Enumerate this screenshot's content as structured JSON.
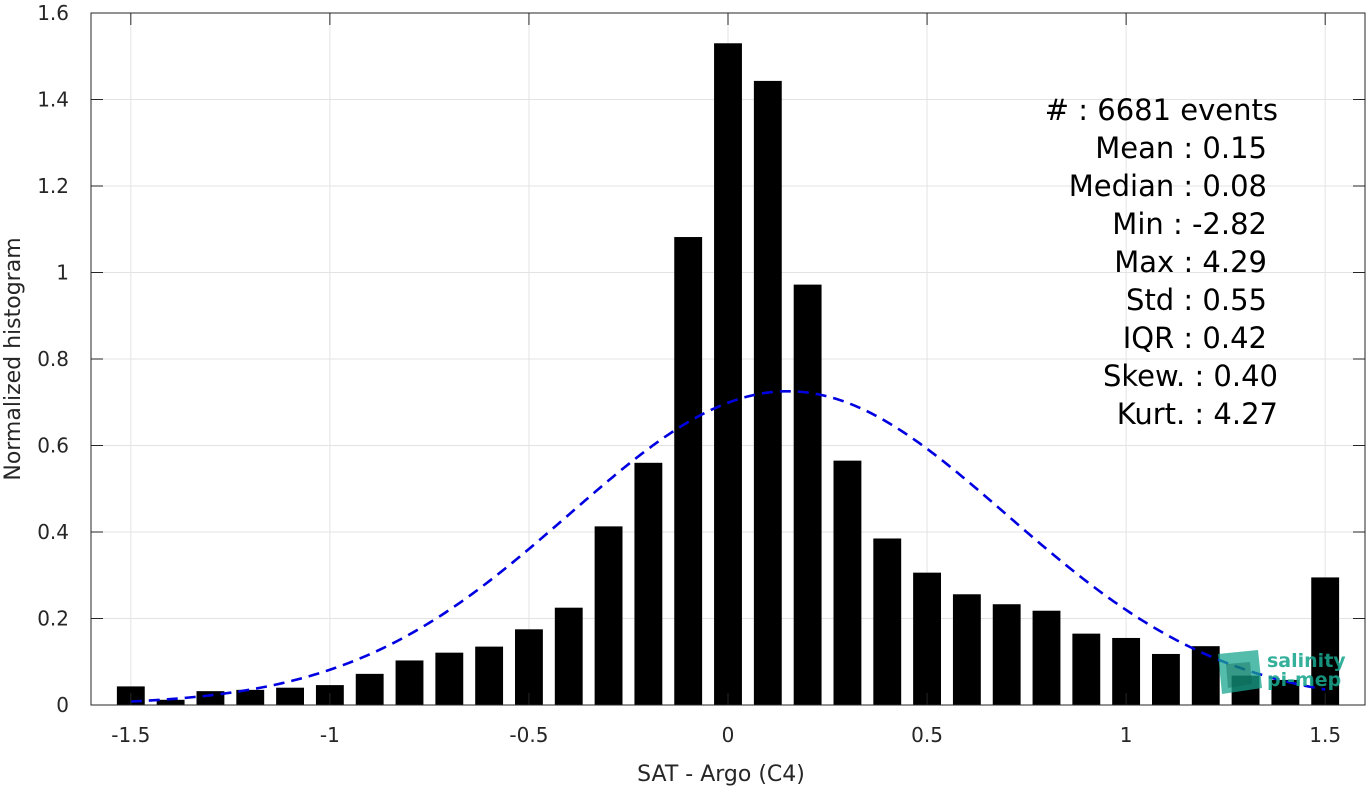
{
  "chart_data": {
    "type": "bar",
    "title": "",
    "xlabel": "SAT - Argo (C4)",
    "ylabel": "Normalized histogram",
    "xlim": [
      -1.6,
      1.6
    ],
    "ylim": [
      0,
      1.6
    ],
    "grid": true,
    "x_ticks": [
      -1.5,
      -1,
      -0.5,
      0,
      0.5,
      1,
      1.5
    ],
    "x_tick_labels": [
      "-1.5",
      "-1",
      "-0.5",
      "0",
      "0.5",
      "1",
      "1.5"
    ],
    "y_ticks": [
      0,
      0.2,
      0.4,
      0.6,
      0.8,
      1,
      1.2,
      1.4,
      1.6
    ],
    "y_tick_labels": [
      "0",
      "0.2",
      "0.4",
      "0.6",
      "0.8",
      "1",
      "1.2",
      "1.4",
      "1.6"
    ],
    "bar_color": "#000000",
    "bar_width": 0.07,
    "x": [
      -1.5,
      -1.4,
      -1.3,
      -1.2,
      -1.1,
      -1.0,
      -0.9,
      -0.8,
      -0.7,
      -0.6,
      -0.5,
      -0.4,
      -0.3,
      -0.2,
      -0.1,
      0.0,
      0.1,
      0.2,
      0.3,
      0.4,
      0.5,
      0.6,
      0.7,
      0.8,
      0.9,
      1.0,
      1.1,
      1.2,
      1.3,
      1.4,
      1.5
    ],
    "values": [
      0.043,
      0.012,
      0.032,
      0.035,
      0.04,
      0.046,
      0.072,
      0.103,
      0.121,
      0.135,
      0.175,
      0.225,
      0.413,
      0.56,
      1.082,
      1.53,
      1.443,
      0.972,
      0.565,
      0.385,
      0.306,
      0.256,
      0.233,
      0.218,
      0.165,
      0.155,
      0.118,
      0.136,
      0.068,
      0.058,
      0.295
    ],
    "fit_curve": {
      "style": "dashed",
      "color": "#0000e0",
      "mean": 0.15,
      "std": 0.55,
      "x_range": [
        -1.5,
        1.5
      ]
    },
    "stats_lines": [
      "#  : 6681 events",
      "Mean : 0.15",
      "Median : 0.08",
      "Min : -2.82",
      "Max : 4.29",
      "Std : 0.55",
      "IQR : 0.42",
      "Skew. : 0.40",
      "Kurt. : 4.27"
    ]
  },
  "logo": {
    "line1": "salinity",
    "line2": "pi-mep",
    "color": "#1aa68e"
  }
}
